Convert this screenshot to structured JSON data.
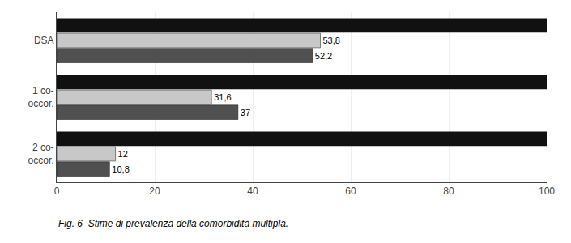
{
  "chart_data": {
    "type": "bar",
    "orientation": "horizontal",
    "categories": [
      "2 co-\noccor.",
      "1 co-\noccor.",
      "DSA"
    ],
    "series": [
      {
        "color": "#111111",
        "values": [
          100,
          100,
          100
        ]
      },
      {
        "color": "#c8c8c8",
        "values": [
          12,
          31.6,
          53.8
        ],
        "value_labels": [
          "12",
          "31,6",
          "53,8"
        ]
      },
      {
        "color": "#505050",
        "values": [
          10.8,
          37,
          52.2
        ],
        "value_labels": [
          "10,8",
          "37",
          "52,2"
        ]
      }
    ],
    "data_labels": true,
    "xlim": [
      0,
      100
    ],
    "xticks": [
      0,
      20,
      40,
      60,
      80,
      100
    ],
    "grid": true,
    "annotations": [
      "Fig. 6  Stime di prevalenza della comorbidità multipla."
    ]
  }
}
